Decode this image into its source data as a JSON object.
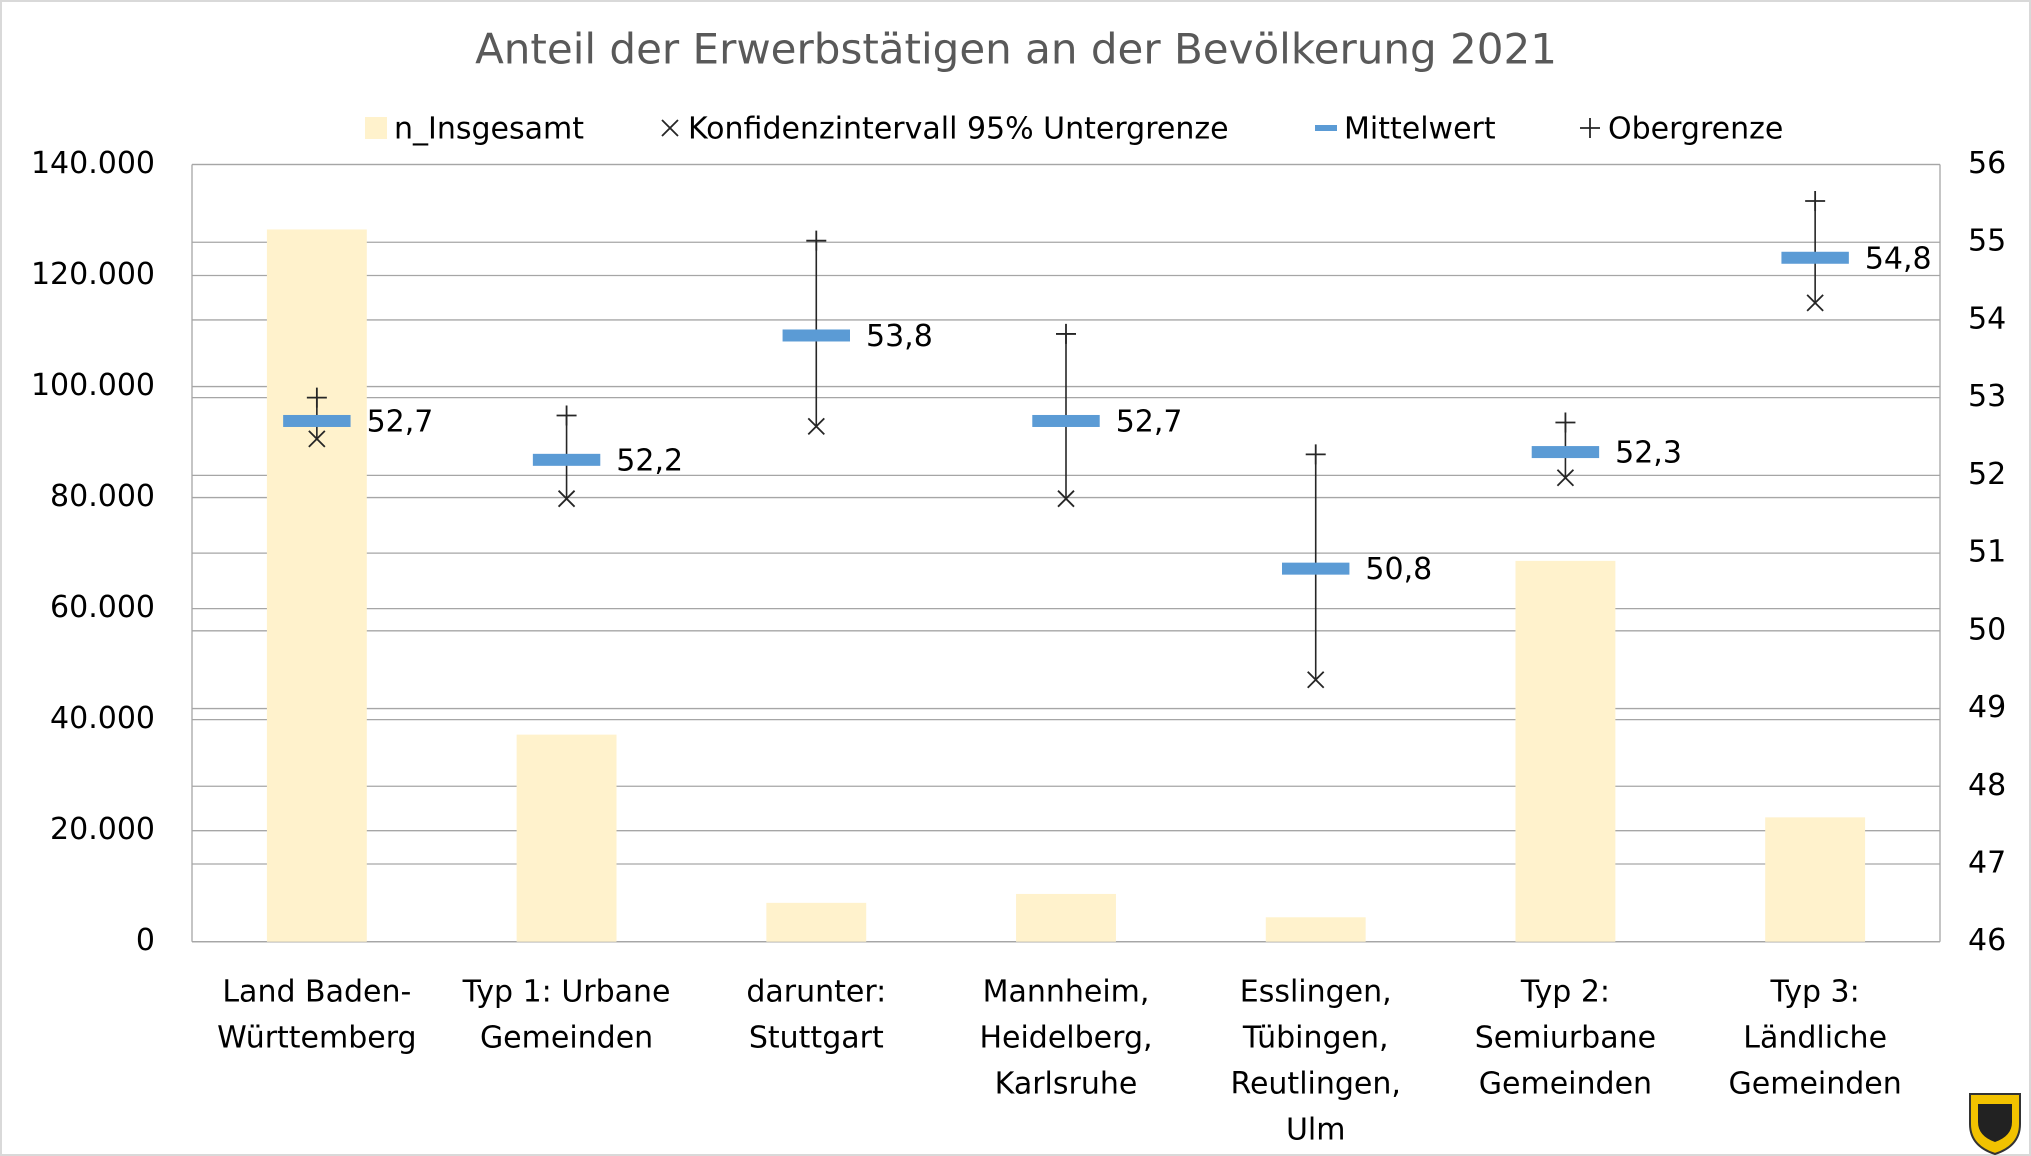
{
  "chart_data": {
    "type": "bar",
    "title": "Anteil der Erwerbstätigen an der Bevölkerung 2021",
    "categories": [
      "Land Baden-\nWürttemberg",
      "Typ 1: Urbane\nGemeinden",
      "darunter:\nStuttgart",
      "Mannheim,\nHeidelberg,\nKarlsruhe",
      "Esslingen,\nTübingen,\nReutlingen,\nUlm",
      "Typ 2:\nSemiurbane\nGemeinden",
      "Typ 3:\nLändliche\nGemeinden"
    ],
    "series": [
      {
        "name": "n_Insgesamt",
        "color": "#fff2cc",
        "values": [
          128300,
          37300,
          7000,
          8600,
          4400,
          68600,
          22400
        ]
      },
      {
        "name": "Konfidenzintervall 95% Untergrenze",
        "color": "#262626",
        "axis": "y2",
        "values": [
          52.47,
          51.7,
          52.63,
          51.7,
          49.37,
          51.97,
          54.22
        ]
      },
      {
        "name": "Mittelwert",
        "color": "#5b9bd5",
        "axis": "y2",
        "values": [
          52.7,
          52.2,
          53.8,
          52.7,
          50.8,
          52.3,
          54.8
        ],
        "value_labels": [
          "52,7",
          "52,2",
          "53,8",
          "52,7",
          "50,8",
          "52,3",
          "54,8"
        ]
      },
      {
        "name": "Obergrenze",
        "color": "#262626",
        "axis": "y2",
        "values": [
          53.0,
          52.77,
          55.02,
          53.82,
          52.27,
          52.68,
          55.53
        ]
      }
    ],
    "ylim": [
      0,
      140000
    ],
    "yticks": [
      {
        "value": 0,
        "label": "0"
      },
      {
        "value": 20000,
        "label": "20.000"
      },
      {
        "value": 40000,
        "label": "40.000"
      },
      {
        "value": 60000,
        "label": "60.000"
      },
      {
        "value": 80000,
        "label": "80.000"
      },
      {
        "value": 100000,
        "label": "100.000"
      },
      {
        "value": 120000,
        "label": "120.000"
      },
      {
        "value": 140000,
        "label": "140.000"
      }
    ],
    "y2lim": [
      46,
      56
    ],
    "y2ticks": [
      46,
      47,
      48,
      49,
      50,
      51,
      52,
      53,
      54,
      55,
      56
    ],
    "grid": true,
    "legend": "top"
  }
}
